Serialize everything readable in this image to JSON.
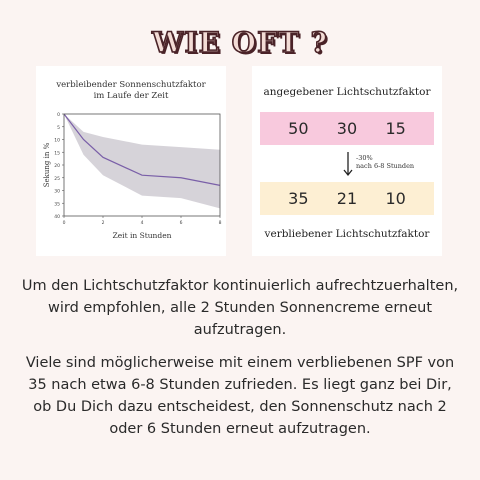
{
  "title": "WIE OFT ?",
  "chart_data": {
    "type": "line",
    "title": "verbleibender Sonnenschutzfaktor\nim Laufe der Zeit",
    "xlabel": "Zeit in Stunden",
    "ylabel": "Sekung in %",
    "xlim": [
      0,
      8
    ],
    "ylim": [
      0,
      40
    ],
    "y_inverted": true,
    "x_ticks": [
      0,
      2,
      4,
      6,
      8
    ],
    "y_ticks": [
      0,
      5,
      10,
      15,
      20,
      25,
      30,
      35,
      40
    ],
    "series": [
      {
        "x": [
          0,
          1,
          2,
          4,
          6,
          8
        ],
        "values": [
          0,
          10,
          17,
          24,
          25,
          28
        ]
      }
    ],
    "band": {
      "x": [
        0,
        1,
        2,
        4,
        6,
        8
      ],
      "lower": [
        0,
        7,
        9,
        12,
        13,
        14
      ],
      "upper": [
        0,
        16,
        24,
        32,
        33,
        37
      ]
    },
    "colors": {
      "line": "#7a5fa8",
      "band": "#cfcbd2"
    }
  },
  "spf": {
    "heading": "angegebener Lichtschutzfaktor",
    "given": [
      "50",
      "30",
      "15"
    ],
    "remaining": [
      "35",
      "21",
      "10"
    ],
    "arrow_note_1": "-30%",
    "arrow_note_2": "nach 6-8 Stunden",
    "footer": "verbliebener Lichtschutzfaktor",
    "colors": {
      "top": "#f8c9dd",
      "bottom": "#fdefd3"
    }
  },
  "text": {
    "paragraph_1": "Um den Lichtschutzfaktor kontinuierlich aufrechtzuerhalten, wird empfohlen, alle 2 Stunden Sonnencreme erneut aufzutragen.",
    "paragraph_2": "Viele sind möglicherweise mit einem verbliebenen SPF von 35 nach etwa 6-8 Stunden zufrieden. Es liegt ganz bei Dir, ob Du Dich dazu entscheidest, den Sonnenschutz nach 2 oder 6 Stunden erneut aufzutragen."
  }
}
